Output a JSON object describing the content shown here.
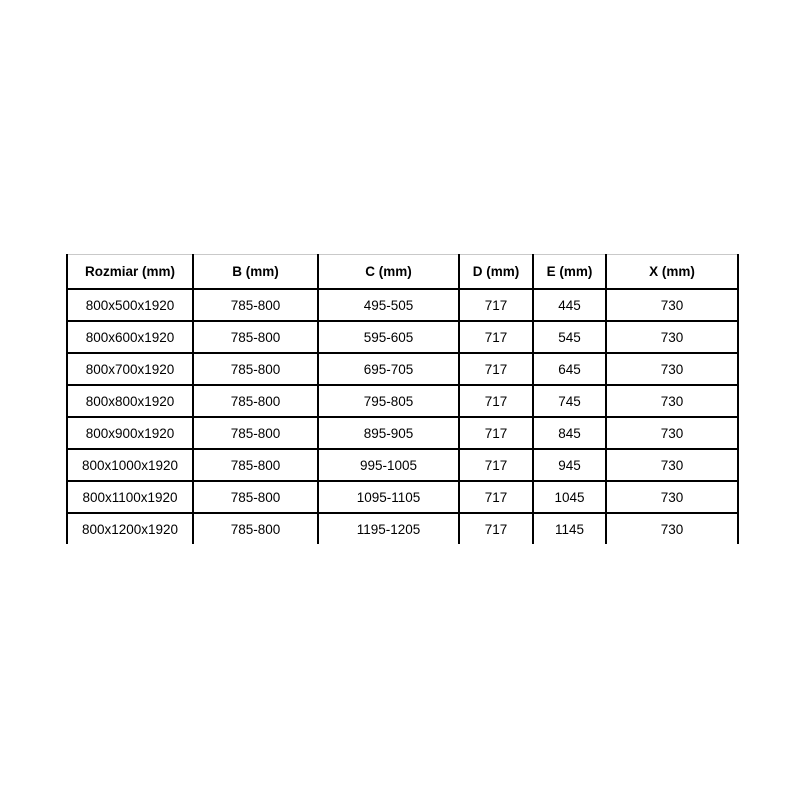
{
  "chart_data": {
    "type": "table",
    "title": "",
    "columns": [
      "Rozmiar (mm)",
      "B (mm)",
      "C (mm)",
      "D (mm)",
      "E (mm)",
      "X (mm)"
    ],
    "rows": [
      [
        "800x500x1920",
        "785-800",
        "495-505",
        "717",
        "445",
        "730"
      ],
      [
        "800x600x1920",
        "785-800",
        "595-605",
        "717",
        "545",
        "730"
      ],
      [
        "800x700x1920",
        "785-800",
        "695-705",
        "717",
        "645",
        "730"
      ],
      [
        "800x800x1920",
        "785-800",
        "795-805",
        "717",
        "745",
        "730"
      ],
      [
        "800x900x1920",
        "785-800",
        "895-905",
        "717",
        "845",
        "730"
      ],
      [
        "800x1000x1920",
        "785-800",
        "995-1005",
        "717",
        "945",
        "730"
      ],
      [
        "800x1100x1920",
        "785-800",
        "1095-1105",
        "717",
        "1045",
        "730"
      ],
      [
        "800x1200x1920",
        "785-800",
        "1195-1205",
        "717",
        "1145",
        "730"
      ]
    ],
    "layout": {
      "header_bold": true,
      "grid": true,
      "bottom_border": false
    },
    "colors": {
      "border": "#000000",
      "top_border": "#c9c9c9",
      "text": "#000000",
      "background": "#ffffff"
    }
  }
}
